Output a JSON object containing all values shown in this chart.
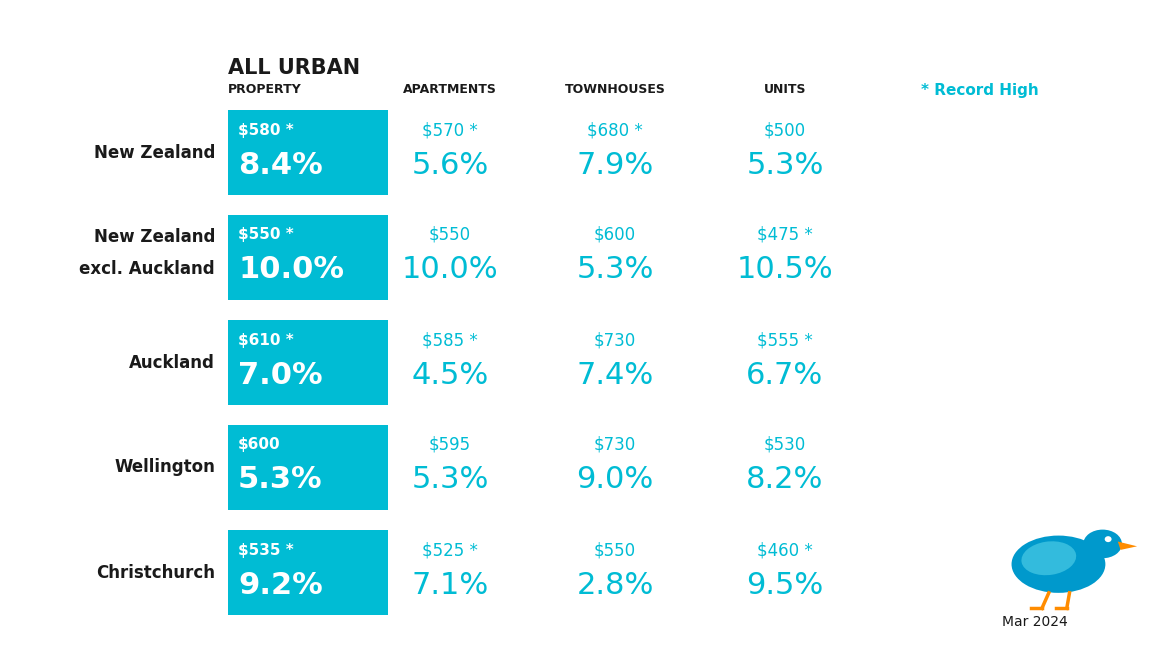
{
  "title_line1": "ALL URBAN",
  "title_line2": "PROPERTY",
  "col_headers": [
    "APARTMENTS",
    "TOWNHOUSES",
    "UNITS"
  ],
  "record_high_label": "* Record High",
  "rows": [
    {
      "region": "New Zealand",
      "region_line2": null,
      "all_urban_rent": "$580 *",
      "all_urban_pct": "8.4%",
      "apartments_rent": "$570 *",
      "apartments_pct": "5.6%",
      "townhouses_rent": "$680 *",
      "townhouses_pct": "7.9%",
      "units_rent": "$500",
      "units_pct": "5.3%"
    },
    {
      "region": "New Zealand",
      "region_line2": "excl. Auckland",
      "all_urban_rent": "$550 *",
      "all_urban_pct": "10.0%",
      "apartments_rent": "$550",
      "apartments_pct": "10.0%",
      "townhouses_rent": "$600",
      "townhouses_pct": "5.3%",
      "units_rent": "$475 *",
      "units_pct": "10.5%"
    },
    {
      "region": "Auckland",
      "region_line2": null,
      "all_urban_rent": "$610 *",
      "all_urban_pct": "7.0%",
      "apartments_rent": "$585 *",
      "apartments_pct": "4.5%",
      "townhouses_rent": "$730",
      "townhouses_pct": "7.4%",
      "units_rent": "$555 *",
      "units_pct": "6.7%"
    },
    {
      "region": "Wellington",
      "region_line2": null,
      "all_urban_rent": "$600",
      "all_urban_pct": "5.3%",
      "apartments_rent": "$595",
      "apartments_pct": "5.3%",
      "townhouses_rent": "$730",
      "townhouses_pct": "9.0%",
      "units_rent": "$530",
      "units_pct": "8.2%"
    },
    {
      "region": "Christchurch",
      "region_line2": null,
      "all_urban_rent": "$535 *",
      "all_urban_pct": "9.2%",
      "apartments_rent": "$525 *",
      "apartments_pct": "7.1%",
      "townhouses_rent": "$550",
      "townhouses_pct": "2.8%",
      "units_rent": "$460 *",
      "units_pct": "9.5%"
    }
  ],
  "teal_box_color": "#00BCD4",
  "teal_text_color": "#00BCD4",
  "white_color": "#FFFFFF",
  "dark_text_color": "#1a1a1a",
  "background_color": "#FFFFFF",
  "date_label": "Mar 2024",
  "fig_width": 11.5,
  "fig_height": 6.63,
  "dpi": 100
}
